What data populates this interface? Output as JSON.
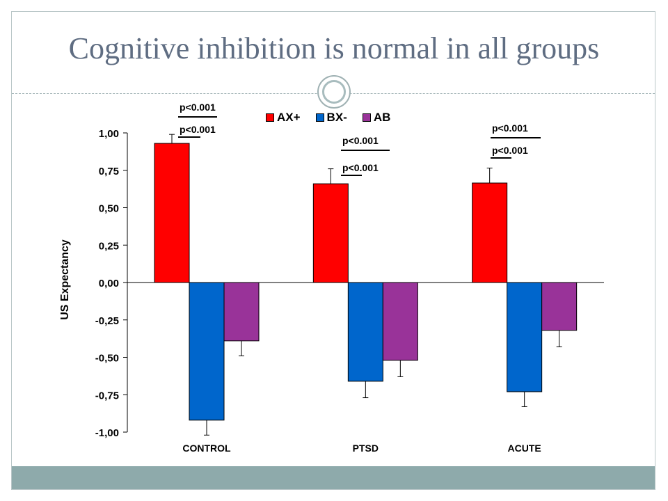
{
  "slide": {
    "title": "Cognitive inhibition is normal in all groups"
  },
  "colors": {
    "AX+": "#ff0000",
    "BX-": "#0066cc",
    "AB": "#993399",
    "accent": "#8eaaab",
    "title": "#5f6d82"
  },
  "chart_data": {
    "type": "bar",
    "categories": [
      "CONTROL",
      "PTSD",
      "ACUTE"
    ],
    "series": [
      {
        "name": "AX+",
        "values": [
          0.93,
          0.66,
          0.665
        ],
        "errors": [
          0.06,
          0.1,
          0.1
        ]
      },
      {
        "name": "BX-",
        "values": [
          -0.92,
          -0.66,
          -0.73
        ],
        "errors": [
          0.1,
          0.11,
          0.1
        ]
      },
      {
        "name": "AB",
        "values": [
          -0.39,
          -0.52,
          -0.32
        ],
        "errors": [
          0.1,
          0.11,
          0.11
        ]
      }
    ],
    "title": "",
    "xlabel": "",
    "ylabel": "US Expectancy",
    "ylim": [
      -1.0,
      1.0
    ],
    "yticks": [
      "1,00",
      "0,75",
      "0,50",
      "0,25",
      "0,00",
      "-0,25",
      "-0,50",
      "-0,75",
      "-1,00"
    ],
    "legend_position": "top",
    "grid": false,
    "annotations": [
      {
        "group": "CONTROL",
        "text": "p<0.001",
        "level": "upper"
      },
      {
        "group": "CONTROL",
        "text": "p<0.001",
        "level": "lower"
      },
      {
        "group": "PTSD",
        "text": "p<0.001",
        "level": "upper"
      },
      {
        "group": "PTSD",
        "text": "p<0.001",
        "level": "lower"
      },
      {
        "group": "ACUTE",
        "text": "p<0.001",
        "level": "upper"
      },
      {
        "group": "ACUTE",
        "text": "p<0.001",
        "level": "lower"
      }
    ]
  }
}
